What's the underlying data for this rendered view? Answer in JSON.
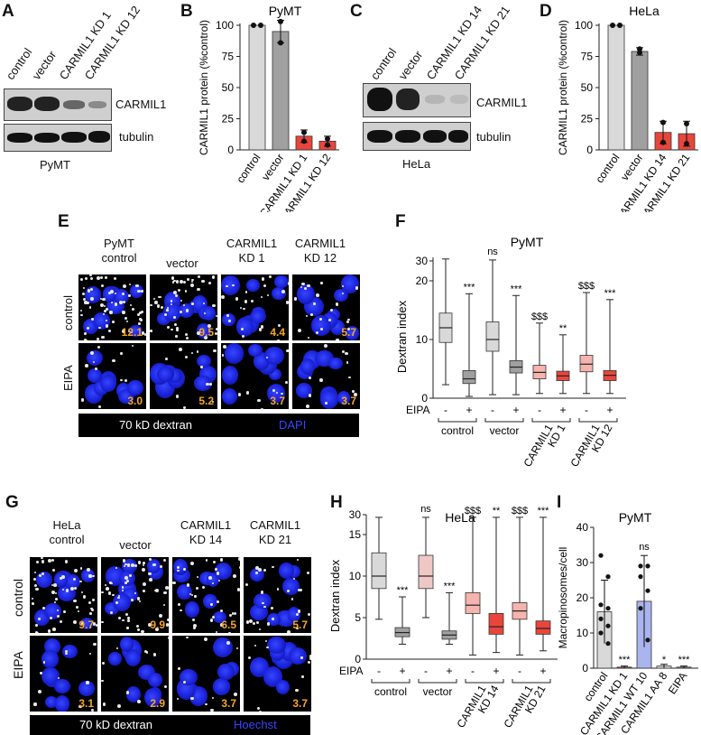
{
  "panels": {
    "A": {
      "letter": "A",
      "lanes": [
        "control",
        "vector",
        "CARMIL1 KD 1",
        "CARMIL1 KD 12"
      ],
      "blot_labels": [
        "CARMIL1",
        "tubulin"
      ],
      "cell_line": "PyMT"
    },
    "B": {
      "letter": "B",
      "title": "PyMT",
      "ylabel": "CARMIL1 protein (%control)"
    },
    "C": {
      "letter": "C",
      "lanes": [
        "control",
        "vector",
        "CARMIL1 KD 14",
        "CARMIL1 KD 21"
      ],
      "blot_labels": [
        "CARMIL1",
        "tubulin"
      ],
      "cell_line": "HeLa"
    },
    "D": {
      "letter": "D",
      "title": "HeLa",
      "ylabel": "CARMIL1 protein (%control)"
    },
    "E": {
      "letter": "E",
      "col_headers": [
        "PyMT\ncontrol",
        "vector",
        "CARMIL1\nKD 1",
        "CARMIL1\nKD 12"
      ],
      "row_labels": [
        "control",
        "EIPA"
      ],
      "values_top": [
        "12.1",
        "9.5",
        "4.4",
        "5.7"
      ],
      "values_bottom": [
        "3.0",
        "5.2",
        "3.7",
        "3.7"
      ],
      "legend_left": "70 kD dextran",
      "legend_right": "DAPI"
    },
    "F": {
      "letter": "F",
      "title": "PyMT",
      "ylabel": "Dextran index",
      "eipa_label": "EIPA"
    },
    "G": {
      "letter": "G",
      "col_headers": [
        "HeLa\ncontrol",
        "vector",
        "CARMIL1\nKD 14",
        "CARMIL1\nKD 21"
      ],
      "row_labels": [
        "control",
        "EIPA"
      ],
      "values_top": [
        "9.7",
        "9.9",
        "6.5",
        "5.7"
      ],
      "values_bottom": [
        "3.1",
        "2.9",
        "3.7",
        "3.7"
      ],
      "legend_left": "70 kD dextran",
      "legend_right": "Hoechst"
    },
    "H": {
      "letter": "H",
      "title": "HeLa",
      "ylabel": "Dextran index",
      "eipa_label": "EIPA"
    },
    "I": {
      "letter": "I",
      "title": "PyMT",
      "ylabel": "Macropinosomes/cell"
    }
  },
  "colors": {
    "light_gray": "#d9d9d9",
    "dark_gray": "#a0a0a0",
    "red": "#e8463c",
    "light_red": "#f6b4ae",
    "blue": "#aab4ee",
    "orange_value": "#f5a623",
    "dapi_blue": "#3646ff"
  },
  "chart_data": [
    {
      "id": "B",
      "type": "bar",
      "title": "PyMT",
      "ylabel": "CARMIL1 protein (%control)",
      "categories": [
        "control",
        "vector",
        "CARMIL1 KD 1",
        "CARMIL1 KD 12"
      ],
      "values": [
        100,
        95,
        11,
        7
      ],
      "errors": [
        0,
        9,
        5,
        4
      ],
      "points": [
        [
          100,
          100
        ],
        [
          103,
          86
        ],
        [
          7,
          14
        ],
        [
          4,
          9
        ]
      ],
      "ylim": [
        0,
        100
      ],
      "yticks": [
        0,
        25,
        50,
        75,
        100
      ]
    },
    {
      "id": "D",
      "type": "bar",
      "title": "HeLa",
      "ylabel": "CARMIL1 protein (%control)",
      "categories": [
        "control",
        "vector",
        "CARMIL1 KD 14",
        "CARMIL1 KD 21"
      ],
      "values": [
        100,
        79,
        14,
        13
      ],
      "errors": [
        0,
        3,
        9,
        10
      ],
      "points": [
        [
          100,
          100
        ],
        [
          81,
          78
        ],
        [
          22,
          6
        ],
        [
          21,
          5
        ]
      ],
      "ylim": [
        0,
        100
      ],
      "yticks": [
        0,
        25,
        50,
        75,
        100
      ]
    },
    {
      "id": "F",
      "type": "box",
      "title": "PyMT",
      "ylabel": "Dextran index",
      "yticks": [
        "0",
        "10",
        "20",
        "30"
      ],
      "group_labels": [
        "control",
        "vector",
        "CARMIL1\nKD 1",
        "CARMIL1\nKD 12"
      ],
      "eipa": [
        "-",
        "+",
        "-",
        "+",
        "-",
        "+",
        "-",
        "+"
      ],
      "boxes": [
        {
          "min": 2.3,
          "q1": 9.5,
          "med": 12,
          "q3": 14.5,
          "max": 31,
          "color": "#d9d9d9"
        },
        {
          "min": 0.3,
          "q1": 2.5,
          "med": 3.3,
          "q3": 4.7,
          "max": 17.8,
          "color": "#a0a0a0"
        },
        {
          "min": 0.6,
          "q1": 8,
          "med": 10,
          "q3": 13,
          "max": 30.5,
          "color": "#d9d9d9"
        },
        {
          "min": 0.6,
          "q1": 4.3,
          "med": 5.3,
          "q3": 6.4,
          "max": 17.5,
          "color": "#a0a0a0"
        },
        {
          "min": 0.8,
          "q1": 3.3,
          "med": 4.4,
          "q3": 5.6,
          "max": 12.8,
          "color": "#f6b4ae"
        },
        {
          "min": 0.8,
          "q1": 3.0,
          "med": 3.8,
          "q3": 4.6,
          "max": 10.8,
          "color": "#e8463c"
        },
        {
          "min": 0.8,
          "q1": 4.5,
          "med": 5.8,
          "q3": 7.3,
          "max": 18,
          "color": "#f6b4ae"
        },
        {
          "min": 0.8,
          "q1": 3.0,
          "med": 3.9,
          "q3": 4.7,
          "max": 16.8,
          "color": "#e8463c"
        }
      ],
      "annotations": [
        "***",
        "ns",
        "***",
        "$$$",
        "**",
        "$$$",
        "***"
      ]
    },
    {
      "id": "H",
      "type": "box",
      "title": "HeLa",
      "ylabel": "Dextran index",
      "yticks": [
        "0",
        "5",
        "10",
        "15",
        "30"
      ],
      "group_labels": [
        "control",
        "vector",
        "CARMIL1\nKD 14",
        "CARMIL1\nKD 21"
      ],
      "eipa": [
        "-",
        "+",
        "-",
        "+",
        "-",
        "+",
        "-",
        "+"
      ],
      "boxes": [
        {
          "min": 4.8,
          "q1": 8.5,
          "med": 10,
          "q3": 12.8,
          "max": 28,
          "color": "#d9d9d9"
        },
        {
          "min": 1.8,
          "q1": 2.7,
          "med": 3.2,
          "q3": 3.8,
          "max": 7.5,
          "color": "#a0a0a0"
        },
        {
          "min": 5.0,
          "q1": 8.5,
          "med": 10,
          "q3": 12.5,
          "max": 28,
          "color": "#efc8c6"
        },
        {
          "min": 1.8,
          "q1": 2.4,
          "med": 2.9,
          "q3": 3.4,
          "max": 8.0,
          "color": "#a0a0a0"
        },
        {
          "min": 0.5,
          "q1": 5.5,
          "med": 6.5,
          "q3": 8.0,
          "max": 28,
          "color": "#f6b4ae"
        },
        {
          "min": 0.8,
          "q1": 3.0,
          "med": 3.9,
          "q3": 5.5,
          "max": 28,
          "color": "#e8463c"
        },
        {
          "min": 0.5,
          "q1": 4.8,
          "med": 5.8,
          "q3": 6.8,
          "max": 28,
          "color": "#f6b4ae"
        },
        {
          "min": 1.0,
          "q1": 3.0,
          "med": 3.7,
          "q3": 4.6,
          "max": 28,
          "color": "#e8463c"
        }
      ],
      "annotations": [
        "***",
        "ns",
        "***",
        "$$$",
        "**",
        "$$$",
        "***"
      ]
    },
    {
      "id": "I",
      "type": "bar",
      "title": "PyMT",
      "ylabel": "Macropinosomes/cell",
      "categories": [
        "control",
        "CARMIL1 KD 1",
        "CARMIL1 WT 10",
        "CARMIL1 AA 8",
        "EIPA"
      ],
      "values": [
        16,
        0.3,
        19,
        0.6,
        0.3
      ],
      "errors": [
        9,
        0.3,
        13,
        0.5,
        0.3
      ],
      "colors": [
        "#d9d9d9",
        "#e8463c",
        "#aab4ee",
        "#d9d9d9",
        "#a0a0a0"
      ],
      "annotations": [
        "",
        "***",
        "ns",
        "*",
        "***"
      ],
      "ylim": [
        0,
        40
      ],
      "yticks": [
        0,
        10,
        20,
        30,
        40
      ]
    }
  ]
}
